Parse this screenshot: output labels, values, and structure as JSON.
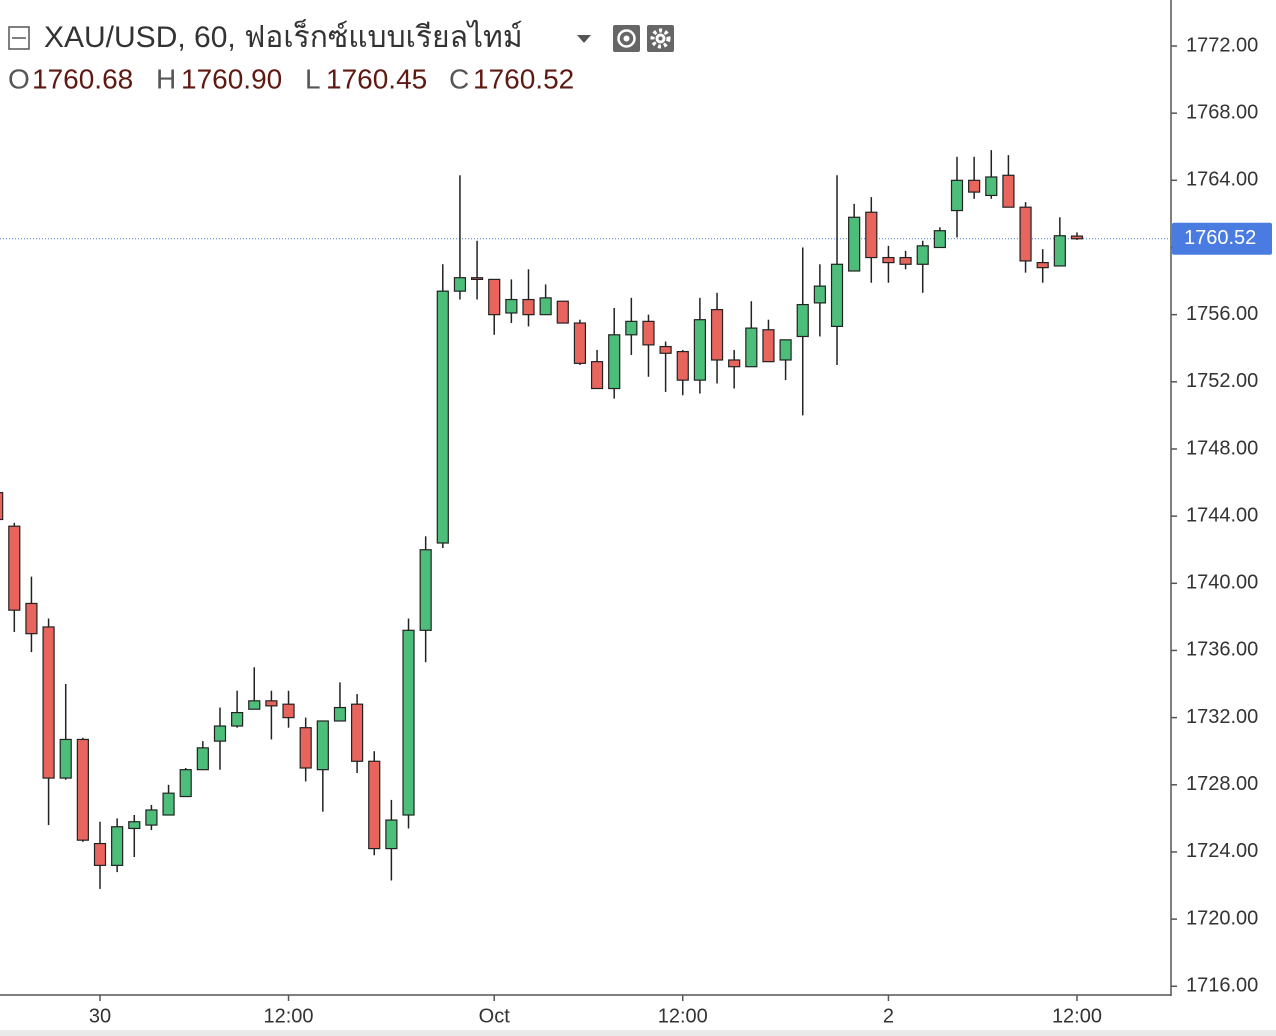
{
  "chart_data": {
    "type": "candlestick",
    "title": "XAU/USD, 60, ฟอเร็กซ์แบบเรียลไทม์",
    "ohlc_legend": {
      "labels": [
        "O",
        "H",
        "L",
        "C"
      ],
      "values": [
        "1760.68",
        "1760.90",
        "1760.45",
        "1760.52"
      ]
    },
    "categories": [
      null,
      null,
      null,
      null,
      null,
      null,
      "30",
      null,
      null,
      null,
      null,
      null,
      null,
      null,
      null,
      null,
      null,
      "12:00",
      null,
      null,
      null,
      null,
      null,
      null,
      null,
      null,
      null,
      null,
      null,
      "Oct",
      null,
      null,
      null,
      null,
      null,
      null,
      null,
      null,
      null,
      null,
      "12:00",
      null,
      null,
      null,
      null,
      null,
      null,
      null,
      null,
      null,
      null,
      null,
      "2",
      null,
      null,
      null,
      null,
      null,
      null,
      null,
      null,
      null,
      null,
      "12:00"
    ],
    "series": [
      {
        "up_color": "#4dbd7a",
        "down_color": "#e8655d",
        "open": [
          1745.4,
          1743.4,
          1738.8,
          1737.4,
          1728.4,
          1730.7,
          1724.5,
          1723.2,
          1725.4,
          1725.6,
          1726.2,
          1727.3,
          1728.9,
          1730.6,
          1731.5,
          1732.5,
          1733.0,
          1732.8,
          1731.4,
          1728.9,
          1731.8,
          1732.8,
          1729.4,
          1724.2,
          1726.2,
          1737.2,
          1742.4,
          1757.4,
          1758.2,
          1758.1,
          1756.1,
          1756.9,
          1756.0,
          1756.8,
          1755.5,
          1753.2,
          1751.6,
          1754.8,
          1755.6,
          1754.1,
          1753.8,
          1752.1,
          1756.3,
          1753.3,
          1752.9,
          1755.1,
          1753.3,
          1754.7,
          1756.7,
          1755.3,
          1758.6,
          1762.1,
          1759.4,
          1759.4,
          1759.0,
          1760.0,
          1762.2,
          1764.0,
          1763.1,
          1764.3,
          1762.4,
          1759.1,
          1758.9,
          1760.68
        ],
        "high": [
          1745.6,
          1743.6,
          1740.4,
          1737.9,
          1734.0,
          1730.8,
          1725.8,
          1726.0,
          1726.2,
          1726.8,
          1728.0,
          1729.0,
          1730.6,
          1732.6,
          1733.6,
          1735.0,
          1733.6,
          1733.6,
          1732.0,
          1731.8,
          1734.1,
          1733.4,
          1730.0,
          1727.1,
          1737.9,
          1742.8,
          1759.0,
          1764.3,
          1760.4,
          1758.1,
          1758.1,
          1758.7,
          1757.8,
          1756.8,
          1755.7,
          1753.9,
          1756.4,
          1757.0,
          1756.0,
          1754.4,
          1753.9,
          1757.0,
          1757.3,
          1753.9,
          1756.8,
          1755.7,
          1754.5,
          1760.0,
          1759.0,
          1764.3,
          1762.6,
          1763.0,
          1760.1,
          1759.8,
          1760.4,
          1761.2,
          1765.4,
          1765.4,
          1765.8,
          1765.5,
          1762.7,
          1759.9,
          1761.8,
          1760.9
        ],
        "low": [
          1743.6,
          1737.1,
          1735.9,
          1725.6,
          1728.3,
          1724.6,
          1721.8,
          1722.8,
          1723.7,
          1725.3,
          1726.2,
          1727.3,
          1728.9,
          1728.9,
          1731.4,
          1732.5,
          1730.7,
          1731.4,
          1728.2,
          1726.4,
          1731.8,
          1728.7,
          1723.8,
          1722.3,
          1725.4,
          1735.3,
          1742.1,
          1756.9,
          1756.9,
          1754.8,
          1755.5,
          1755.3,
          1756.0,
          1755.5,
          1753.0,
          1751.6,
          1751.0,
          1753.6,
          1752.3,
          1751.4,
          1751.2,
          1751.3,
          1751.9,
          1751.6,
          1753.0,
          1753.2,
          1752.1,
          1750.0,
          1754.7,
          1753.0,
          1758.6,
          1757.9,
          1757.9,
          1758.7,
          1757.3,
          1760.0,
          1760.6,
          1762.9,
          1762.9,
          1762.4,
          1758.5,
          1757.9,
          1758.9,
          1760.45
        ],
        "close": [
          1743.8,
          1738.4,
          1737.0,
          1728.4,
          1730.7,
          1724.7,
          1723.2,
          1725.5,
          1725.8,
          1726.5,
          1727.5,
          1728.9,
          1730.2,
          1731.5,
          1732.3,
          1733.0,
          1732.7,
          1732.0,
          1729.0,
          1731.8,
          1732.6,
          1729.4,
          1724.2,
          1725.9,
          1737.2,
          1742.0,
          1757.4,
          1758.2,
          1758.1,
          1756.0,
          1756.9,
          1756.0,
          1757.0,
          1755.5,
          1753.1,
          1751.6,
          1754.8,
          1755.6,
          1754.2,
          1753.7,
          1752.1,
          1755.7,
          1753.3,
          1752.9,
          1755.2,
          1753.2,
          1754.5,
          1756.6,
          1757.7,
          1759.0,
          1761.8,
          1759.4,
          1759.1,
          1759.0,
          1760.1,
          1761.0,
          1764.0,
          1763.3,
          1764.2,
          1762.4,
          1759.2,
          1758.8,
          1760.7,
          1760.52
        ]
      }
    ],
    "last_price": {
      "value": 1760.52,
      "label": "1760.52",
      "color": "#4a7be0"
    },
    "ylim": [
      1715.48,
      1774.74
    ],
    "yticks": [
      {
        "value": 1716,
        "label": "1716.00"
      },
      {
        "value": 1720,
        "label": "1720.00"
      },
      {
        "value": 1724,
        "label": "1724.00"
      },
      {
        "value": 1728,
        "label": "1728.00"
      },
      {
        "value": 1732,
        "label": "1732.00"
      },
      {
        "value": 1736,
        "label": "1736.00"
      },
      {
        "value": 1740,
        "label": "1740.00"
      },
      {
        "value": 1744,
        "label": "1744.00"
      },
      {
        "value": 1748,
        "label": "1748.00"
      },
      {
        "value": 1752,
        "label": "1752.00"
      },
      {
        "value": 1756,
        "label": "1756.00"
      },
      {
        "value": 1760,
        "label": "1760.00"
      },
      {
        "value": 1764,
        "label": "1764.00"
      },
      {
        "value": 1768,
        "label": "1768.00"
      },
      {
        "value": 1772,
        "label": "1772.00"
      }
    ]
  }
}
